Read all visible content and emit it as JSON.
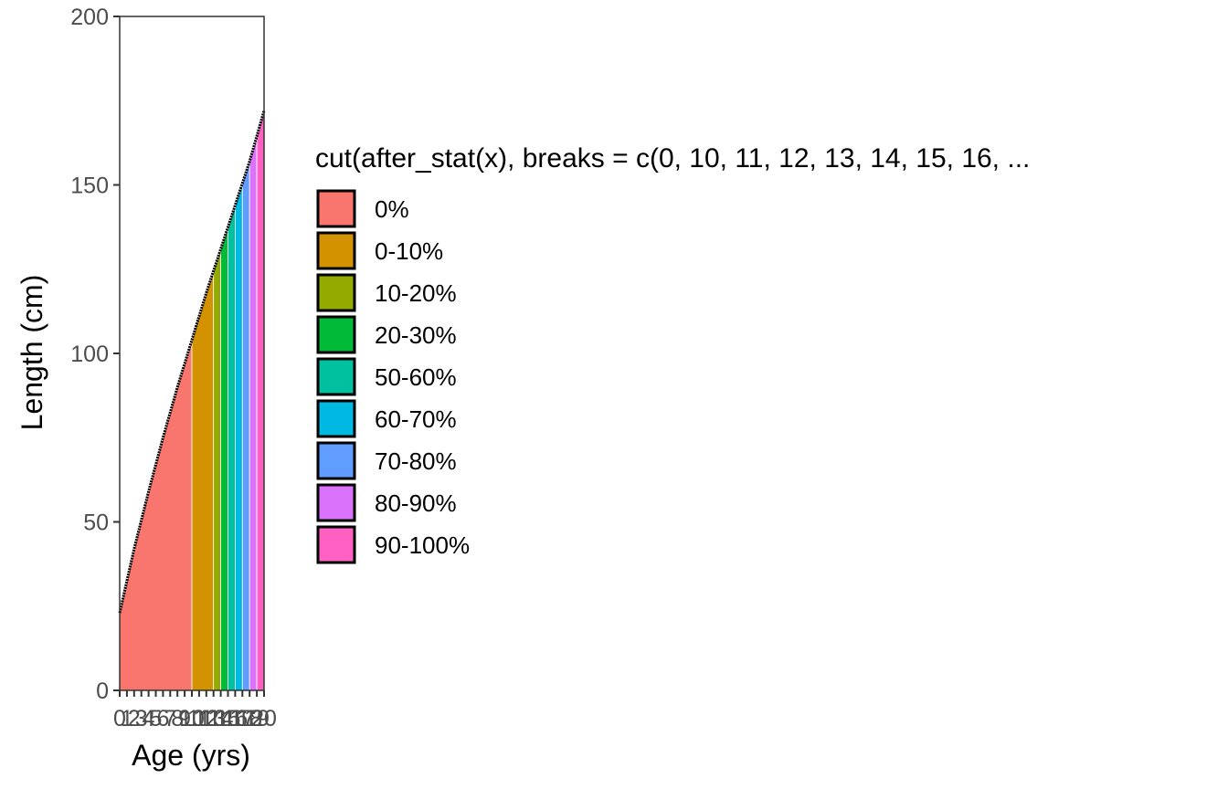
{
  "chart_data": {
    "type": "area",
    "title": "",
    "xlabel": "Age (yrs)",
    "ylabel": "Length (cm)",
    "xlim": [
      0,
      20
    ],
    "ylim": [
      0,
      200
    ],
    "y_ticks": [
      0,
      50,
      100,
      150,
      200
    ],
    "x_ticks": [
      0,
      1,
      2,
      3,
      4,
      5,
      6,
      7,
      8,
      9,
      10,
      11,
      12,
      13,
      14,
      15,
      16,
      17,
      18,
      19,
      20
    ],
    "x_tick_labels": [
      "0",
      "1",
      "2",
      "3",
      "4",
      "5",
      "6",
      "7",
      "8",
      "9",
      "10",
      "11",
      "12",
      "13",
      "14",
      "15",
      "16",
      "17",
      "18",
      "19",
      "20"
    ],
    "curve": {
      "x": [
        0,
        2,
        4,
        6,
        8,
        10,
        12,
        14,
        16,
        18,
        20
      ],
      "y": [
        23,
        42,
        59,
        75,
        90,
        104,
        118,
        131,
        144,
        157,
        172
      ]
    },
    "regions": [
      {
        "label": "0%",
        "from": 0,
        "to": 10,
        "color": "#F8766D"
      },
      {
        "label": "0-10%",
        "from": 10,
        "to": 13,
        "color": "#D39200"
      },
      {
        "label": "10-20%",
        "from": 13,
        "to": 14,
        "color": "#93AA00"
      },
      {
        "label": "20-30%",
        "from": 14,
        "to": 15,
        "color": "#00BA38"
      },
      {
        "label": "50-60%",
        "from": 15,
        "to": 16,
        "color": "#00C19F"
      },
      {
        "label": "60-70%",
        "from": 16,
        "to": 17,
        "color": "#00B9E3"
      },
      {
        "label": "70-80%",
        "from": 17,
        "to": 18,
        "color": "#619CFF"
      },
      {
        "label": "80-90%",
        "from": 18,
        "to": 19,
        "color": "#DB72FB"
      },
      {
        "label": "90-100%",
        "from": 19,
        "to": 20,
        "color": "#FF61C3"
      }
    ],
    "legend": {
      "title": "cut(after_stat(x), breaks = c(0, 10, 11, 12, 13, 14, 15, 16, ...",
      "placement": "right"
    },
    "grid": false
  }
}
